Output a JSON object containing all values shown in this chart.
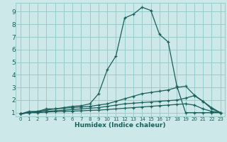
{
  "xlabel": "Humidex (Indice chaleur)",
  "bg_color": "#cce8e8",
  "grid_color": "#99cccc",
  "line_color": "#1a5f5a",
  "xlim": [
    -0.5,
    23.5
  ],
  "ylim": [
    0.7,
    9.7
  ],
  "yticks": [
    1,
    2,
    3,
    4,
    5,
    6,
    7,
    8,
    9
  ],
  "xticks": [
    0,
    1,
    2,
    3,
    4,
    5,
    6,
    7,
    8,
    9,
    10,
    11,
    12,
    13,
    14,
    15,
    16,
    17,
    18,
    19,
    20,
    21,
    22,
    23
  ],
  "lines": [
    {
      "x": [
        0,
        1,
        2,
        3,
        4,
        5,
        6,
        7,
        8,
        9,
        10,
        11,
        12,
        13,
        14,
        15,
        16,
        17,
        18,
        19,
        20,
        21,
        22,
        23
      ],
      "y": [
        0.9,
        1.1,
        1.1,
        1.3,
        1.3,
        1.4,
        1.5,
        1.55,
        1.7,
        2.5,
        4.4,
        5.5,
        8.5,
        8.8,
        9.35,
        9.1,
        7.2,
        6.6,
        3.1,
        1.0,
        1.0,
        1.0,
        1.0,
        1.0
      ]
    },
    {
      "x": [
        0,
        1,
        2,
        3,
        4,
        5,
        6,
        7,
        8,
        9,
        10,
        11,
        12,
        13,
        14,
        15,
        16,
        17,
        18,
        19,
        20,
        21,
        22,
        23
      ],
      "y": [
        0.9,
        1.0,
        1.1,
        1.2,
        1.3,
        1.35,
        1.4,
        1.45,
        1.5,
        1.6,
        1.7,
        1.9,
        2.1,
        2.3,
        2.5,
        2.6,
        2.7,
        2.8,
        3.0,
        3.1,
        2.4,
        1.9,
        1.3,
        1.0
      ]
    },
    {
      "x": [
        0,
        1,
        2,
        3,
        4,
        5,
        6,
        7,
        8,
        9,
        10,
        11,
        12,
        13,
        14,
        15,
        16,
        17,
        18,
        19,
        20,
        21,
        22,
        23
      ],
      "y": [
        0.9,
        1.0,
        1.05,
        1.1,
        1.15,
        1.2,
        1.25,
        1.3,
        1.35,
        1.4,
        1.5,
        1.6,
        1.7,
        1.75,
        1.8,
        1.85,
        1.9,
        1.95,
        2.0,
        2.15,
        2.35,
        1.9,
        1.4,
        1.0
      ]
    },
    {
      "x": [
        0,
        1,
        2,
        3,
        4,
        5,
        6,
        7,
        8,
        9,
        10,
        11,
        12,
        13,
        14,
        15,
        16,
        17,
        18,
        19,
        20,
        21,
        22,
        23
      ],
      "y": [
        0.9,
        1.0,
        1.0,
        1.05,
        1.08,
        1.1,
        1.12,
        1.15,
        1.18,
        1.2,
        1.25,
        1.3,
        1.35,
        1.4,
        1.45,
        1.5,
        1.55,
        1.6,
        1.65,
        1.7,
        1.6,
        1.3,
        1.1,
        1.0
      ]
    }
  ]
}
